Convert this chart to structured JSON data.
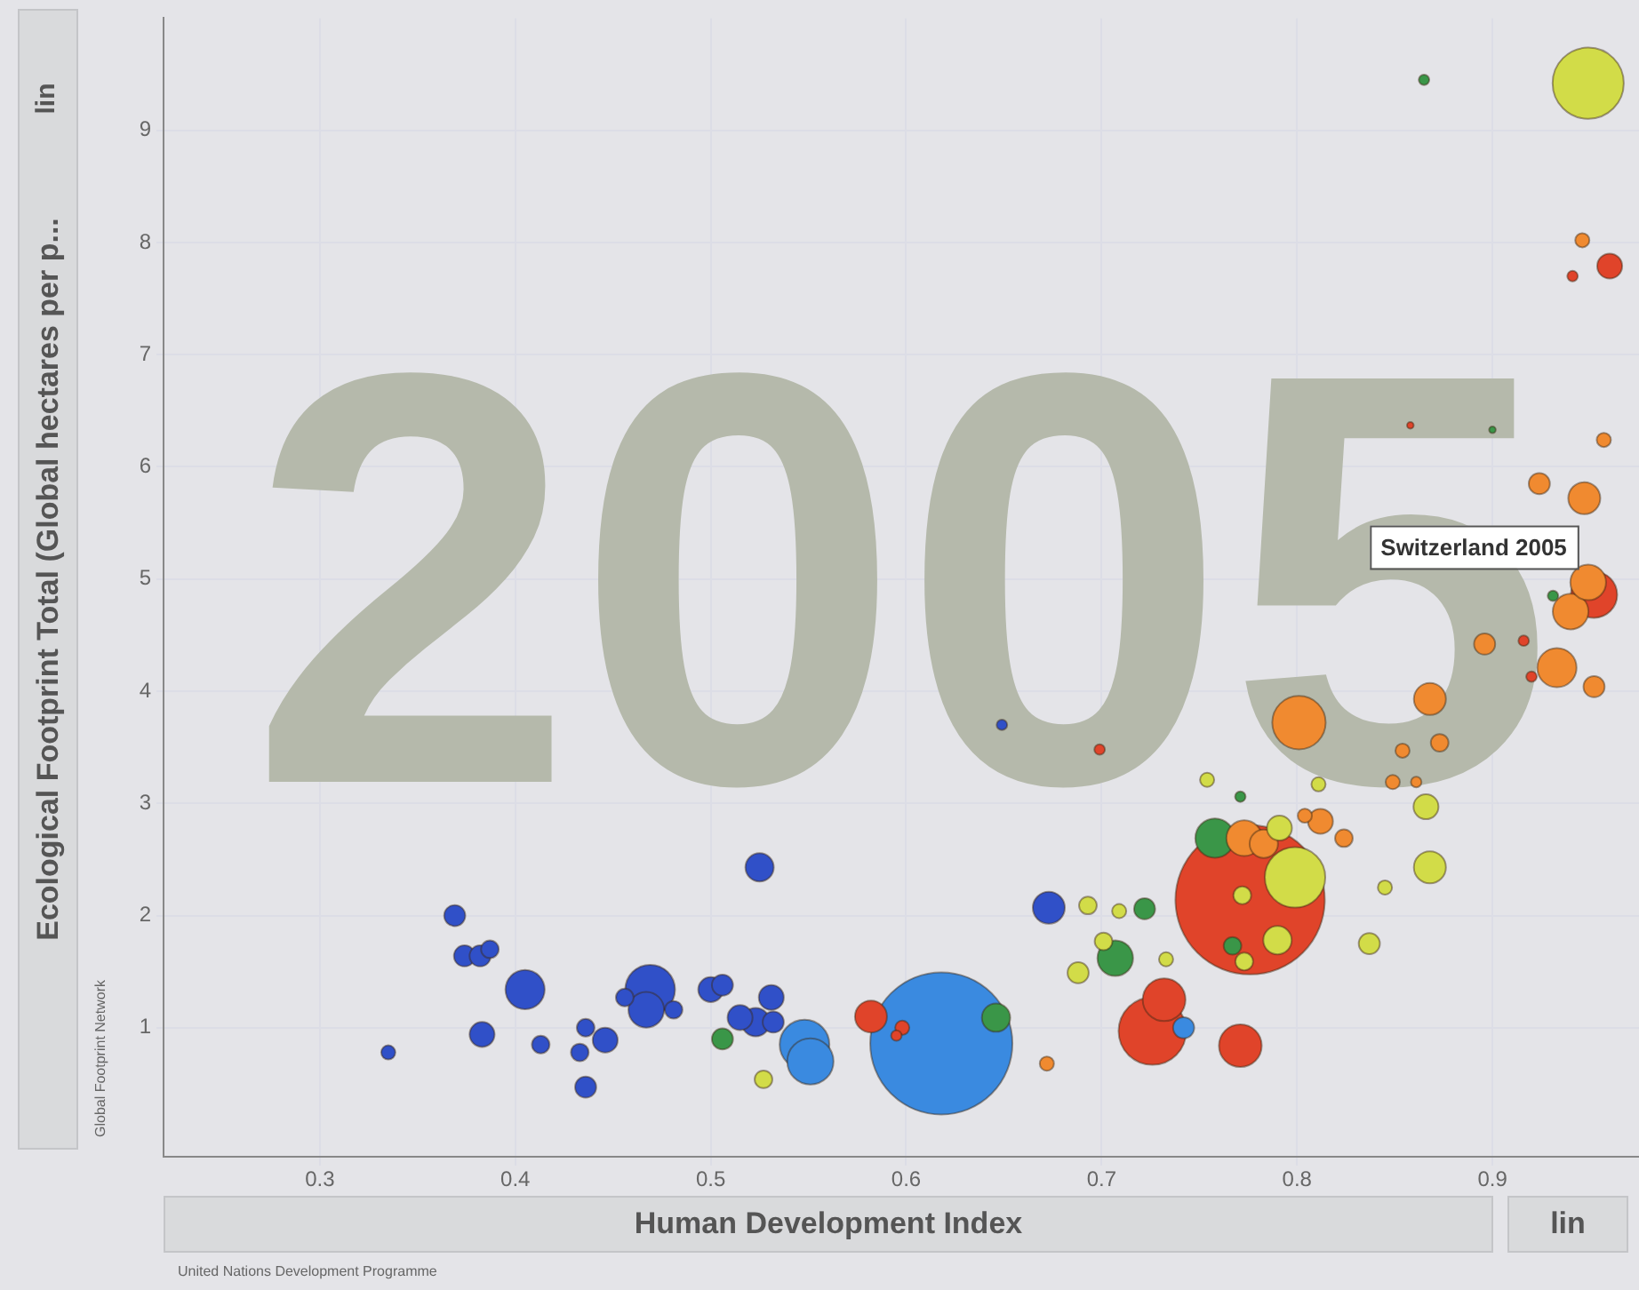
{
  "chart_data": {
    "type": "bubble",
    "xlabel": "Human Development Index",
    "ylabel": "Ecological Footprint Total (Global hectares per p...",
    "xlim": [
      0.22,
      0.975
    ],
    "ylim": [
      -0.15,
      10
    ],
    "xticks": [
      0.3,
      0.4,
      0.5,
      0.6,
      0.7,
      0.8,
      0.9
    ],
    "yticks": [
      1,
      2,
      3,
      4,
      5,
      6,
      7,
      8,
      9
    ],
    "grid": true,
    "legend": false,
    "annotations": [
      "2005",
      {
        "text": "Switzerland 2005",
        "x": 0.949,
        "y": 4.97
      },
      "Global Footprint Network",
      "United Nations Development Programme",
      "lin",
      "lin"
    ],
    "series": [
      {
        "color": "#3050c8",
        "x": [
          0.335,
          0.369,
          0.374,
          0.382,
          0.387,
          0.405,
          0.383,
          0.413,
          0.436,
          0.446,
          0.433,
          0.436,
          0.469,
          0.467,
          0.456,
          0.481,
          0.5,
          0.506,
          0.515,
          0.523,
          0.531,
          0.532,
          0.525,
          0.649,
          0.673
        ],
        "values": [
          0.78,
          2.0,
          1.64,
          1.64,
          1.7,
          1.34,
          0.94,
          0.85,
          1.0,
          0.89,
          0.78,
          0.47,
          1.34,
          1.16,
          1.27,
          1.16,
          1.34,
          1.38,
          1.09,
          1.05,
          1.27,
          1.05,
          2.43,
          3.7,
          2.07
        ],
        "sizes": [
          0.009,
          0.02,
          0.02,
          0.02,
          0.014,
          0.069,
          0.028,
          0.014,
          0.014,
          0.028,
          0.014,
          0.02,
          0.111,
          0.057,
          0.014,
          0.014,
          0.028,
          0.02,
          0.028,
          0.036,
          0.028,
          0.02,
          0.036,
          0.005,
          0.046
        ]
      },
      {
        "color": "#3a8ae0",
        "x": [
          0.618,
          0.548,
          0.551,
          0.742
        ],
        "values": [
          0.86,
          0.85,
          0.7,
          1.0
        ],
        "sizes": [
          0.907,
          0.111,
          0.096,
          0.02
        ]
      },
      {
        "color": "#3a9648",
        "x": [
          0.506,
          0.646,
          0.707,
          0.722,
          0.758,
          0.771,
          0.767,
          0.865,
          0.931,
          0.9
        ],
        "values": [
          0.9,
          1.09,
          1.62,
          2.06,
          2.69,
          3.06,
          1.73,
          9.45,
          4.85,
          6.33
        ],
        "sizes": [
          0.02,
          0.036,
          0.057,
          0.02,
          0.069,
          0.005,
          0.014,
          0.005,
          0.005,
          0.002
        ]
      },
      {
        "color": "#d2dc48",
        "x": [
          0.949,
          0.527,
          0.688,
          0.693,
          0.709,
          0.733,
          0.754,
          0.799,
          0.791,
          0.79,
          0.772,
          0.773,
          0.811,
          0.866,
          0.868,
          0.845,
          0.837,
          0.701
        ],
        "values": [
          9.42,
          0.54,
          1.49,
          2.09,
          2.04,
          1.61,
          3.21,
          2.34,
          2.78,
          1.78,
          2.18,
          1.59,
          3.17,
          2.97,
          2.43,
          2.25,
          1.75,
          1.77
        ],
        "sizes": [
          0.227,
          0.014,
          0.02,
          0.014,
          0.009,
          0.009,
          0.009,
          0.164,
          0.028,
          0.036,
          0.014,
          0.014,
          0.009,
          0.028,
          0.046,
          0.009,
          0.02,
          0.014
        ]
      },
      {
        "color": "#f08a30",
        "x": [
          0.801,
          0.773,
          0.783,
          0.812,
          0.824,
          0.868,
          0.873,
          0.854,
          0.849,
          0.861,
          0.896,
          0.924,
          0.947,
          0.933,
          0.952,
          0.94,
          0.949,
          0.946,
          0.957,
          0.672,
          0.804
        ],
        "values": [
          3.72,
          2.69,
          2.64,
          2.84,
          2.69,
          3.93,
          3.54,
          3.47,
          3.19,
          3.19,
          4.42,
          5.85,
          5.72,
          4.21,
          4.04,
          4.71,
          4.97,
          8.02,
          6.24,
          0.68,
          2.89
        ],
        "sizes": [
          0.128,
          0.057,
          0.036,
          0.028,
          0.014,
          0.046,
          0.014,
          0.009,
          0.009,
          0.005,
          0.02,
          0.02,
          0.046,
          0.069,
          0.02,
          0.057,
          0.057,
          0.009,
          0.009,
          0.009,
          0.009
        ]
      },
      {
        "color": "#e0442a",
        "x": [
          0.776,
          0.96,
          0.941,
          0.952,
          0.916,
          0.92,
          0.858,
          0.699,
          0.582,
          0.598,
          0.595,
          0.726,
          0.732,
          0.771
        ],
        "values": [
          2.14,
          7.79,
          7.7,
          4.86,
          4.45,
          4.13,
          6.37,
          3.48,
          1.1,
          1.0,
          0.93,
          0.97,
          1.25,
          0.84
        ],
        "sizes": [
          1,
          0.028,
          0.005,
          0.096,
          0.005,
          0.005,
          0.002,
          0.005,
          0.046,
          0.009,
          0.005,
          0.205,
          0.082,
          0.082
        ]
      }
    ]
  }
}
